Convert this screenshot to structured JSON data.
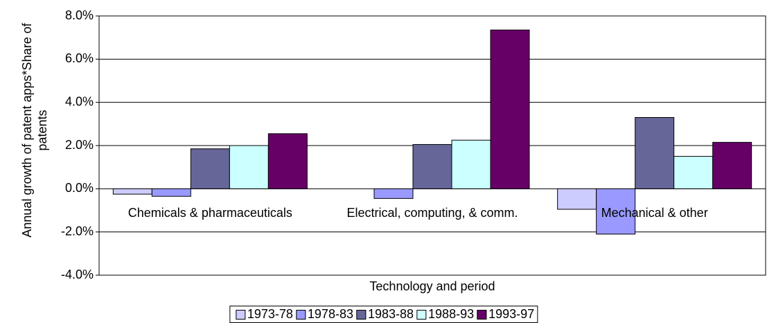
{
  "chart_data": {
    "type": "bar",
    "y_label": "Annual growth of patent apps*Share of patents",
    "x_label": "Technology and period",
    "categories": [
      "Chemicals & pharmaceuticals",
      "Electrical, computing, & comm.",
      "Mechanical & other"
    ],
    "series": [
      {
        "name": "1973-78",
        "color": "#ccccff",
        "values": [
          -0.25,
          0,
          -0.95
        ]
      },
      {
        "name": "1978-83",
        "color": "#9999ff",
        "values": [
          -0.35,
          -0.45,
          -2.1
        ]
      },
      {
        "name": "1983-88",
        "color": "#666699",
        "values": [
          1.85,
          2.05,
          3.3
        ]
      },
      {
        "name": "1988-93",
        "color": "#ccffff",
        "values": [
          2.0,
          2.25,
          1.5
        ]
      },
      {
        "name": "1993-97",
        "color": "#660066",
        "values": [
          2.55,
          7.35,
          2.15
        ]
      }
    ],
    "ylim": [
      -4,
      8
    ],
    "yticks": [
      {
        "value": -4,
        "label": "-4.0%"
      },
      {
        "value": -2,
        "label": "-2.0%"
      },
      {
        "value": 0,
        "label": "0.0%"
      },
      {
        "value": 2,
        "label": "2.0%"
      },
      {
        "value": 4,
        "label": "4.0%"
      },
      {
        "value": 6,
        "label": "6.0%"
      },
      {
        "value": 8,
        "label": "8.0%"
      }
    ],
    "grid": true,
    "legend": "bottom"
  }
}
